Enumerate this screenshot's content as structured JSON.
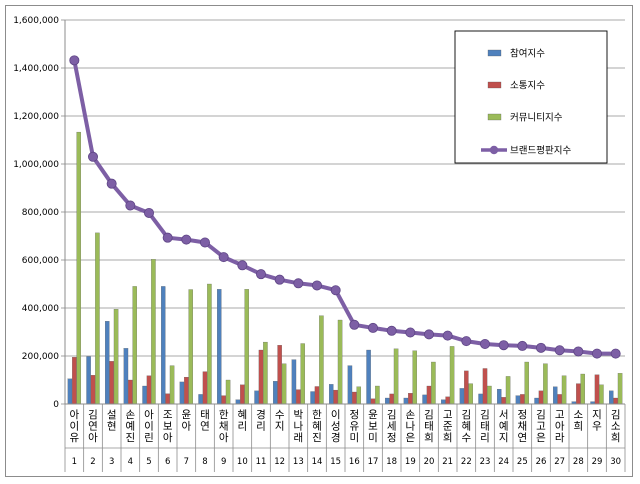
{
  "chart_data": {
    "type": "bar",
    "categories": [
      "아이유",
      "김연아",
      "설현",
      "손예진",
      "아이린",
      "조보아",
      "윤아",
      "태연",
      "한채아",
      "혜리",
      "경리",
      "수지",
      "박나래",
      "한혜진",
      "이성경",
      "정유미",
      "윤보미",
      "김세정",
      "손나은",
      "김태희",
      "고준희",
      "김혜수",
      "김태리",
      "서예지",
      "정채연",
      "김고은",
      "고아라",
      "소희",
      "지우",
      "김소희"
    ],
    "ranks": [
      "1",
      "2",
      "3",
      "4",
      "5",
      "6",
      "7",
      "8",
      "9",
      "10",
      "11",
      "12",
      "13",
      "14",
      "15",
      "16",
      "17",
      "18",
      "19",
      "20",
      "21",
      "22",
      "23",
      "24",
      "25",
      "26",
      "27",
      "28",
      "29",
      "30"
    ],
    "series": [
      {
        "name": "참여지수",
        "type": "bar",
        "color": "#4f81bd",
        "values": [
          105000,
          198000,
          345000,
          232000,
          75000,
          490000,
          92000,
          40000,
          478000,
          18000,
          55000,
          95000,
          185000,
          52000,
          82000,
          160000,
          225000,
          25000,
          25000,
          38000,
          18000,
          65000,
          42000,
          62000,
          35000,
          25000,
          72000,
          10000,
          10000,
          55000
        ]
      },
      {
        "name": "소통지수",
        "type": "bar",
        "color": "#c0504d",
        "values": [
          195000,
          120000,
          178000,
          100000,
          118000,
          43000,
          112000,
          135000,
          35000,
          80000,
          225000,
          245000,
          60000,
          73000,
          58000,
          50000,
          22000,
          42000,
          45000,
          75000,
          30000,
          138000,
          148000,
          28000,
          40000,
          55000,
          40000,
          85000,
          122000,
          25000
        ]
      },
      {
        "name": "커뮤니티지수",
        "type": "bar",
        "color": "#9bbb59",
        "values": [
          1133000,
          713000,
          395000,
          490000,
          603000,
          160000,
          477000,
          500000,
          100000,
          478000,
          258000,
          168000,
          252000,
          368000,
          350000,
          72000,
          75000,
          230000,
          222000,
          175000,
          240000,
          85000,
          75000,
          115000,
          175000,
          168000,
          118000,
          125000,
          80000,
          128000
        ]
      },
      {
        "name": "브랜드평판지수",
        "type": "line",
        "color": "#7d5fa5",
        "values": [
          1432000,
          1030000,
          918000,
          827000,
          796000,
          693000,
          685000,
          673000,
          612000,
          578000,
          541000,
          518000,
          503000,
          494000,
          474000,
          330000,
          317000,
          305000,
          298000,
          290000,
          285000,
          262000,
          250000,
          245000,
          242000,
          234000,
          224000,
          219000,
          210000,
          210000
        ]
      }
    ],
    "yticks": [
      "0",
      "200,000",
      "400,000",
      "600,000",
      "800,000",
      "1,000,000",
      "1,200,000",
      "1,400,000",
      "1,600,000"
    ],
    "ylim": [
      0,
      1600000
    ],
    "grid": true,
    "legend": "top-right",
    "title": "",
    "xlabel": "",
    "ylabel": ""
  }
}
